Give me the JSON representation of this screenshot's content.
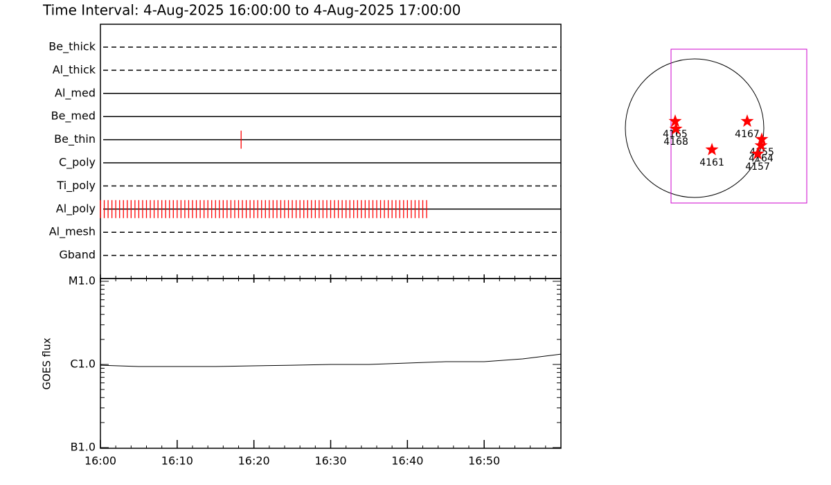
{
  "chart_data": [
    {
      "type": "timeline",
      "title": "Time Interval:  4-Aug-2025 16:00:00 to  4-Aug-2025 17:00:00",
      "xlim": [
        "16:00",
        "17:00"
      ],
      "color": "#ff0000",
      "rows": [
        {
          "name": "Be_thick",
          "style": "dashed",
          "times": []
        },
        {
          "name": "Al_thick",
          "style": "dashed",
          "times": []
        },
        {
          "name": "Al_med",
          "style": "solid",
          "times": []
        },
        {
          "name": "Be_med",
          "style": "solid",
          "times": []
        },
        {
          "name": "Be_thin",
          "style": "solid",
          "times": [
            "16:18:20"
          ]
        },
        {
          "name": "C_poly",
          "style": "solid",
          "times": []
        },
        {
          "name": "Ti_poly",
          "style": "dashed",
          "times": []
        },
        {
          "name": "Al_poly",
          "style": "solid",
          "times": [
            "16:00:00",
            "16:00:30",
            "16:01:00",
            "16:01:30",
            "16:02:00",
            "16:02:30",
            "16:03:00",
            "16:03:30",
            "16:04:00",
            "16:04:30",
            "16:05:00",
            "16:05:30",
            "16:06:00",
            "16:06:30",
            "16:07:00",
            "16:07:30",
            "16:08:00",
            "16:08:30",
            "16:09:00",
            "16:09:30",
            "16:10:00",
            "16:10:30",
            "16:11:00",
            "16:11:30",
            "16:12:00",
            "16:12:30",
            "16:13:00",
            "16:13:30",
            "16:14:00",
            "16:14:30",
            "16:15:00",
            "16:15:30",
            "16:16:00",
            "16:16:30",
            "16:17:00",
            "16:17:30",
            "16:18:00",
            "16:18:30",
            "16:19:00",
            "16:19:30",
            "16:20:00",
            "16:20:30",
            "16:21:00",
            "16:21:30",
            "16:22:00",
            "16:22:30",
            "16:23:00",
            "16:23:30",
            "16:24:00",
            "16:24:30",
            "16:25:00",
            "16:25:30",
            "16:26:00",
            "16:26:30",
            "16:27:00",
            "16:27:30",
            "16:28:00",
            "16:28:30",
            "16:29:00",
            "16:29:30",
            "16:30:00",
            "16:30:30",
            "16:31:00",
            "16:31:30",
            "16:32:00",
            "16:32:30",
            "16:33:00",
            "16:33:30",
            "16:34:00",
            "16:34:30",
            "16:35:00",
            "16:35:30",
            "16:36:00",
            "16:36:30",
            "16:37:00",
            "16:37:30",
            "16:38:00",
            "16:38:30",
            "16:39:00",
            "16:39:30",
            "16:40:00",
            "16:40:30",
            "16:41:00",
            "16:41:30",
            "16:42:00",
            "16:42:30"
          ]
        },
        {
          "name": "Al_mesh",
          "style": "dashed",
          "times": []
        },
        {
          "name": "Gband",
          "style": "dashed",
          "times": []
        }
      ]
    },
    {
      "type": "line",
      "ylabel": "GOES flux",
      "x": [
        "16:00",
        "16:05",
        "16:10",
        "16:15",
        "16:20",
        "16:25",
        "16:30",
        "16:35",
        "16:40",
        "16:45",
        "16:50",
        "16:55",
        "17:00"
      ],
      "values": [
        9.8e-07,
        9.44e-07,
        9.44e-07,
        9.44e-07,
        9.62e-07,
        9.8e-07,
        1e-06,
        1e-06,
        1.039e-06,
        1.08e-06,
        1.08e-06,
        1.166e-06,
        1.33e-06
      ],
      "color": "#000000",
      "log_scale": true,
      "xlim": [
        "16:00",
        "17:00"
      ],
      "xticks": [
        "16:00",
        "16:10",
        "16:20",
        "16:30",
        "16:40",
        "16:50"
      ],
      "ylim": [
        1e-07,
        1e-05
      ],
      "yticks": [
        {
          "value": 1e-07,
          "label": "B1.0"
        },
        {
          "value": 1e-06,
          "label": "C1.0"
        },
        {
          "value": 1e-05,
          "label": "M1.0"
        }
      ]
    },
    {
      "type": "map",
      "solar_radius": 950,
      "fov_x": [
        -323,
        1539
      ],
      "fov_y": [
        -1026,
        1083
      ],
      "fov_color": "#cc00cc",
      "color": "#ff0000",
      "regions": [
        {
          "label": "4165",
          "x": -266,
          "y": 95
        },
        {
          "label": "4168",
          "x": -256,
          "y": -10
        },
        {
          "label": "4167",
          "x": 722,
          "y": 95
        },
        {
          "label": "4161",
          "x": 238,
          "y": -295
        },
        {
          "label": "4155",
          "x": 922,
          "y": -152
        },
        {
          "label": "4164",
          "x": 912,
          "y": -238
        },
        {
          "label": "4157",
          "x": 865,
          "y": -352
        }
      ]
    }
  ]
}
